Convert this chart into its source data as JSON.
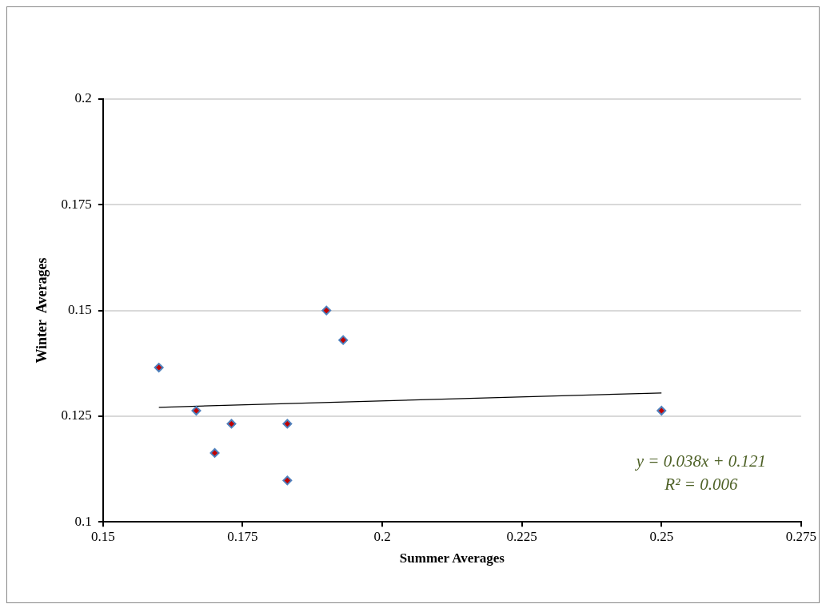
{
  "chart_data": {
    "type": "scatter",
    "xlabel": "Summer Averages",
    "ylabel": "Winter  Averages",
    "xlim": [
      0.15,
      0.275
    ],
    "xticks": [
      0.15,
      0.175,
      0.2,
      0.225,
      0.25,
      0.275
    ],
    "ylim": [
      0.1,
      0.2
    ],
    "yticks": [
      0.1,
      0.125,
      0.15,
      0.175,
      0.2
    ],
    "grid": "y",
    "legend": false,
    "marker": "diamond",
    "series": [
      {
        "color": "#c00000",
        "x": [
          0.16,
          0.1667,
          0.17,
          0.173,
          0.183,
          0.183,
          0.19,
          0.193,
          0.25
        ],
        "values": [
          0.1365,
          0.1263,
          0.1163,
          0.1232,
          0.1232,
          0.1098,
          0.15,
          0.143,
          0.1263
        ]
      },
      {
        "type": "line",
        "color": "#000000",
        "marker": "none",
        "x": [
          0.16,
          0.25
        ],
        "values": [
          0.1271,
          0.1305
        ]
      }
    ],
    "annotations": [
      "y = 0.038x + 0.121",
      "R² = 0.006"
    ]
  }
}
